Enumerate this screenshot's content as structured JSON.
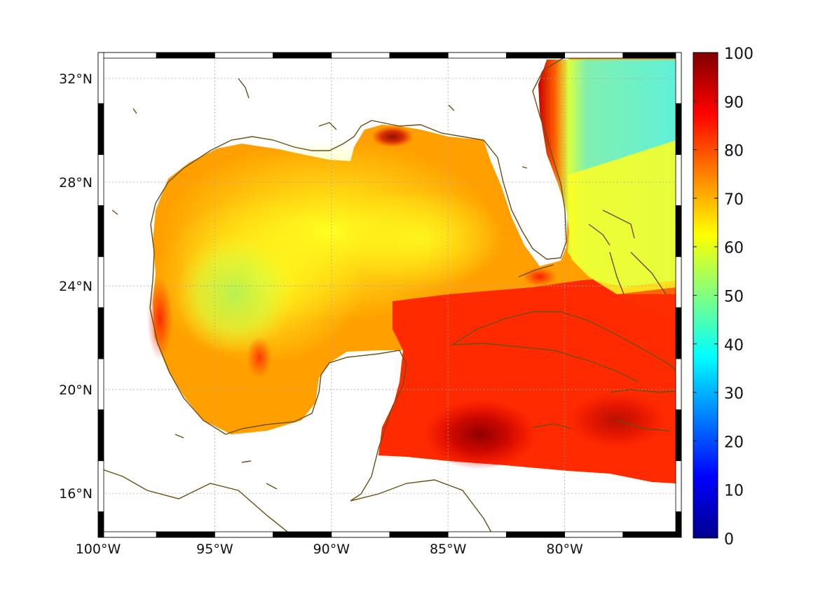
{
  "map": {
    "x_ticks": [
      {
        "lon": -100,
        "label": "100°W"
      },
      {
        "lon": -95,
        "label": "95°W"
      },
      {
        "lon": -90,
        "label": "90°W"
      },
      {
        "lon": -85,
        "label": "85°W"
      },
      {
        "lon": -80,
        "label": "80°W"
      }
    ],
    "y_ticks": [
      {
        "lat": 32,
        "label": "32°N"
      },
      {
        "lat": 28,
        "label": "28°N"
      },
      {
        "lat": 24,
        "label": "24°N"
      },
      {
        "lat": 20,
        "label": "20°N"
      },
      {
        "lat": 16,
        "label": "16°N"
      }
    ],
    "lon_range": [
      -100,
      -75
    ],
    "lat_range": [
      14.3,
      33
    ],
    "grid": true,
    "coast_color": "#6b4e12"
  },
  "colorbar": {
    "labels": [
      "100",
      "90",
      "80",
      "70",
      "60",
      "50",
      "40",
      "30",
      "20",
      "10",
      "0"
    ],
    "range": [
      0,
      100
    ],
    "colormap": [
      "#00008f",
      "#0000ff",
      "#0080ff",
      "#00ffff",
      "#80ff80",
      "#ffff00",
      "#ff8000",
      "#ff0000",
      "#800000"
    ]
  }
}
